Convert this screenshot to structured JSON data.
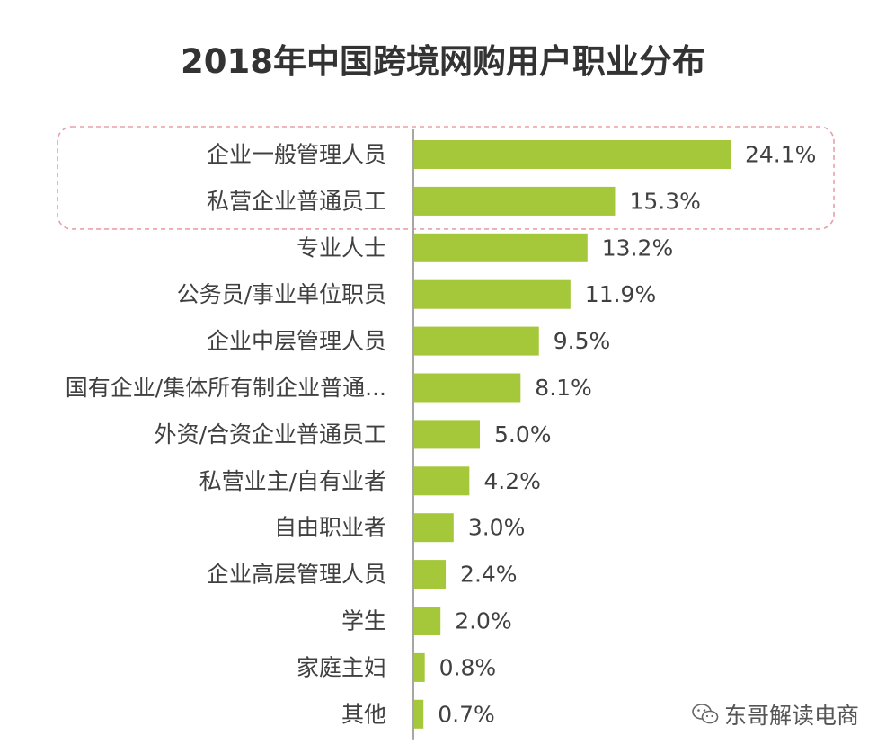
{
  "chart_data": {
    "type": "bar",
    "orientation": "horizontal",
    "title": "2018年中国跨境网购用户职业分布",
    "categories": [
      "企业一般管理人员",
      "私营企业普通员工",
      "专业人士",
      "公务员/事业单位职员",
      "企业中层管理人员",
      "国有企业/集体所有制企业普通...",
      "外资/合资企业普通员工",
      "私营业主/自有业者",
      "自由职业者",
      "企业高层管理人员",
      "学生",
      "家庭主妇",
      "其他"
    ],
    "values": [
      24.1,
      15.3,
      13.2,
      11.9,
      9.5,
      8.1,
      5.0,
      4.2,
      3.0,
      2.4,
      2.0,
      0.8,
      0.7
    ],
    "value_labels": [
      "24.1%",
      "15.3%",
      "13.2%",
      "11.9%",
      "9.5%",
      "8.1%",
      "5.0%",
      "4.2%",
      "3.0%",
      "2.4%",
      "2.0%",
      "0.8%",
      "0.7%"
    ],
    "unit": "%",
    "xlim": [
      0,
      24.1
    ],
    "highlighted_categories": [
      "企业一般管理人员",
      "私营企业普通员工"
    ],
    "bar_color": "#a4c839",
    "highlight_border_color": "#e8a0a8",
    "axis_color": "#a6a6a6"
  },
  "watermark": {
    "text": "东哥解读电商",
    "icon": "wechat-icon"
  }
}
